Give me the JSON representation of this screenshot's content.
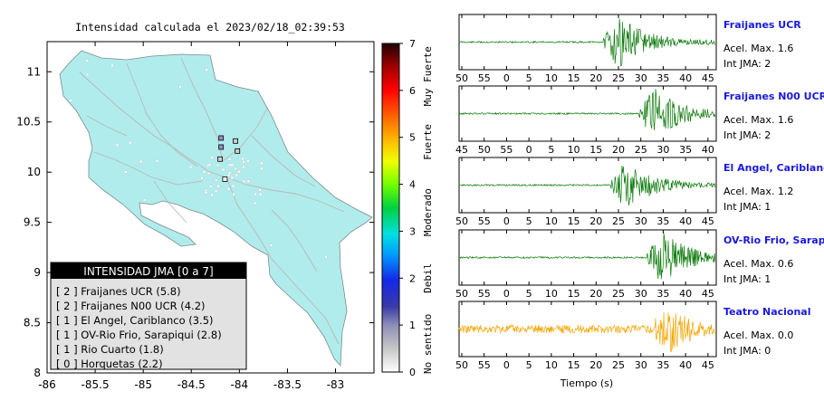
{
  "map_title": "Intensidad calculada el 2023/02/18_02:39:53",
  "map": {
    "lon_ticks": [
      "-86",
      "-85.5",
      "-85",
      "-84.5",
      "-84",
      "-83.5",
      "-83"
    ],
    "lat_ticks": [
      "8",
      "8.5",
      "9",
      "9.5",
      "10",
      "10.5",
      "11"
    ],
    "lon_range": [
      -86,
      -82.6
    ],
    "lat_range": [
      8,
      11.3
    ],
    "land_color": "#b0ecec",
    "stations": [
      {
        "lon": -84.19,
        "lat": 10.34,
        "jma": 2
      },
      {
        "lon": -84.19,
        "lat": 10.25,
        "jma": 2
      },
      {
        "lon": -84.2,
        "lat": 10.13,
        "jma": 1
      },
      {
        "lon": -84.04,
        "lat": 10.31,
        "jma": 1
      },
      {
        "lon": -84.02,
        "lat": 10.21,
        "jma": 1
      },
      {
        "lon": -84.15,
        "lat": 9.93,
        "jma": 0
      }
    ]
  },
  "colorbar": {
    "ticks": [
      "0",
      "1",
      "2",
      "3",
      "4",
      "5",
      "6",
      "7"
    ],
    "categories": [
      "No sentido",
      "Debil",
      "Moderado",
      "Fuerte",
      "Muy Fuerte"
    ]
  },
  "legend": {
    "title": "INTENSIDAD JMA [0 a 7]",
    "items": [
      "[ 2 ]  Fraijanes UCR (5.8)",
      "[ 2 ]  Fraijanes N00 UCR (4.2)",
      "[ 1 ]  El Angel, Cariblanco (3.5)",
      "[ 1 ]  OV-Rio Frio, Sarapiqui (2.8)",
      "[ 1 ]  Rio Cuarto (1.8)",
      "[ 0 ]  Horquetas (2.2)"
    ]
  },
  "chart_data": {
    "type": "line",
    "xlabel": "Tiempo (s)",
    "panels": [
      {
        "name": "Fraijanes UCR",
        "acel": "Acel. Max. 1.6",
        "jma": "Int JMA: 2",
        "ticks": [
          "50",
          "55",
          "0",
          "5",
          "10",
          "15",
          "20",
          "25",
          "30",
          "35",
          "40",
          "45"
        ],
        "color": "#0a7a0a",
        "onset_frac": 0.56,
        "peak_frac": 0.62
      },
      {
        "name": "Fraijanes N00 UCR",
        "acel": "Acel. Max. 1.6",
        "jma": "Int JMA: 2",
        "ticks": [
          "45",
          "50",
          "55",
          "0",
          "5",
          "10",
          "15",
          "20",
          "25",
          "30",
          "35",
          "40"
        ],
        "color": "#0a7a0a",
        "onset_frac": 0.7,
        "peak_frac": 0.76
      },
      {
        "name": "El Angel, Cariblanco",
        "acel": "Acel. Max. 1.2",
        "jma": "Int JMA: 1",
        "ticks": [
          "50",
          "55",
          "0",
          "5",
          "10",
          "15",
          "20",
          "25",
          "30",
          "35",
          "40",
          "45"
        ],
        "color": "#0a7a0a",
        "onset_frac": 0.59,
        "peak_frac": 0.64
      },
      {
        "name": "OV-Rio Frio, Sarapiqui",
        "acel": "Acel. Max. 0.6",
        "jma": "Int JMA: 1",
        "ticks": [
          "50",
          "55",
          "0",
          "5",
          "10",
          "15",
          "20",
          "25",
          "30",
          "35",
          "40",
          "45"
        ],
        "color": "#0a7a0a",
        "onset_frac": 0.73,
        "peak_frac": 0.79
      },
      {
        "name": "Teatro Nacional",
        "acel": "Acel. Max. 0.0",
        "jma": "Int JMA: 0",
        "ticks": [
          "50",
          "55",
          "0",
          "5",
          "10",
          "15",
          "20",
          "25",
          "30",
          "35",
          "40",
          "45"
        ],
        "color": "#f3a500",
        "onset_frac": 0.74,
        "peak_frac": 0.82
      }
    ]
  }
}
